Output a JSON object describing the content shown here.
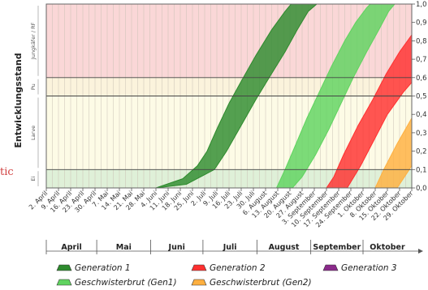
{
  "chart_data": {
    "type": "area",
    "ylabel": "Entwicklungsstand",
    "ylim": [
      0,
      1
    ],
    "y_ticks": [
      "0,0",
      "0,1",
      "0,2",
      "0,3",
      "0,4",
      "0,5",
      "0,6",
      "0,7",
      "0,8",
      "0,9",
      "1,0"
    ],
    "stage_bands": [
      {
        "label": "Ei",
        "from": 0.0,
        "to": 0.1,
        "color": "#dff0d8"
      },
      {
        "label": "Larve",
        "from": 0.1,
        "to": 0.5,
        "color": "#fdfbe6"
      },
      {
        "label": "Pu",
        "from": 0.5,
        "to": 0.6,
        "color": "#fbf3dc"
      },
      {
        "label": "Jungkäfer / RF",
        "from": 0.6,
        "to": 1.0,
        "color": "#fad7d7"
      }
    ],
    "x_dates": [
      "2. April",
      "9. April",
      "16. April",
      "23. April",
      "30. April",
      "7. Mai",
      "14. Mai",
      "21. Mai",
      "28. Mai",
      "4. Juni",
      "11. Juni",
      "18. Juni",
      "25. Juni",
      "2. Juli",
      "9. Juli",
      "16. Juli",
      "23. Juli",
      "30. Juli",
      "6. August",
      "13. August",
      "20. August",
      "27. August",
      "3. September",
      "10. September",
      "17. September",
      "24. September",
      "1. Oktober",
      "8. Oktober",
      "15. Oktober",
      "22. Oktober",
      "29. Oktober"
    ],
    "months": [
      {
        "label": "April",
        "start": 0,
        "end": 4.14
      },
      {
        "label": "Mai",
        "start": 4.14,
        "end": 8.57
      },
      {
        "label": "Juni",
        "start": 8.57,
        "end": 12.86
      },
      {
        "label": "Juli",
        "start": 12.86,
        "end": 17.29
      },
      {
        "label": "August",
        "start": 17.29,
        "end": 21.71
      },
      {
        "label": "September",
        "start": 21.71,
        "end": 26.0
      },
      {
        "label": "Oktober",
        "start": 26.0,
        "end": 30.43
      }
    ],
    "series": [
      {
        "name": "Generation 1",
        "color": "#2e8b2e",
        "upper": [
          [
            9,
            0
          ],
          [
            11.2,
            0.05
          ],
          [
            12.4,
            0.12
          ],
          [
            13.2,
            0.2
          ],
          [
            14.0,
            0.32
          ],
          [
            15.0,
            0.46
          ],
          [
            16.0,
            0.58
          ],
          [
            17.2,
            0.72
          ],
          [
            18.5,
            0.86
          ],
          [
            19.6,
            0.96
          ],
          [
            20.1,
            1.0
          ]
        ],
        "lower": [
          [
            9,
            0
          ],
          [
            11.5,
            0.02
          ],
          [
            13.8,
            0.1
          ],
          [
            14.8,
            0.2
          ],
          [
            16.0,
            0.34
          ],
          [
            17.2,
            0.48
          ],
          [
            18.3,
            0.6
          ],
          [
            19.6,
            0.74
          ],
          [
            20.6,
            0.86
          ],
          [
            21.5,
            0.96
          ],
          [
            22.2,
            1.0
          ]
        ]
      },
      {
        "name": "Geschwisterbrut (Gen1)",
        "color": "#5fd35f",
        "upper": [
          [
            18.9,
            0
          ],
          [
            19.6,
            0.1
          ],
          [
            20.5,
            0.24
          ],
          [
            21.4,
            0.38
          ],
          [
            22.4,
            0.52
          ],
          [
            23.4,
            0.66
          ],
          [
            24.5,
            0.8
          ],
          [
            25.4,
            0.9
          ],
          [
            26.3,
            0.98
          ],
          [
            26.6,
            1.0
          ]
        ],
        "lower": [
          [
            20.2,
            0
          ],
          [
            21.0,
            0.06
          ],
          [
            22.1,
            0.18
          ],
          [
            23.2,
            0.32
          ],
          [
            24.2,
            0.46
          ],
          [
            25.2,
            0.6
          ],
          [
            26.3,
            0.74
          ],
          [
            27.3,
            0.86
          ],
          [
            28.1,
            0.96
          ],
          [
            28.6,
            1.0
          ]
        ]
      },
      {
        "name": "Generation 2",
        "color": "#ff3030",
        "upper": [
          [
            23.0,
            0
          ],
          [
            23.6,
            0.06
          ],
          [
            24.4,
            0.18
          ],
          [
            25.6,
            0.34
          ],
          [
            26.8,
            0.48
          ],
          [
            27.9,
            0.62
          ],
          [
            29.0,
            0.74
          ],
          [
            30.3,
            0.86
          ],
          [
            31.6,
            0.95
          ],
          [
            32.4,
            1.0
          ]
        ],
        "lower": [
          [
            24.7,
            0
          ],
          [
            25.8,
            0.12
          ],
          [
            26.9,
            0.26
          ],
          [
            28.0,
            0.4
          ],
          [
            29.3,
            0.52
          ],
          [
            30.6,
            0.62
          ],
          [
            31.8,
            0.7
          ],
          [
            33.2,
            0.76
          ],
          [
            35.2,
            0.82
          ]
        ]
      },
      {
        "name": "Generation 3",
        "color": "#8b2a8b",
        "upper": [],
        "lower": []
      },
      {
        "name": "Geschwisterbrut (Gen2)",
        "color": "#ffb040",
        "upper": [
          [
            27.0,
            0
          ],
          [
            27.7,
            0.1
          ],
          [
            28.8,
            0.24
          ],
          [
            30.0,
            0.38
          ],
          [
            31.3,
            0.52
          ],
          [
            32.6,
            0.64
          ],
          [
            33.9,
            0.74
          ],
          [
            35.2,
            0.8
          ],
          [
            36.6,
            0.86
          ],
          [
            38.0,
            0.9
          ],
          [
            39.2,
            0.92
          ]
        ],
        "lower": [
          [
            28.8,
            0
          ],
          [
            29.8,
            0.1
          ],
          [
            30.9,
            0.22
          ],
          [
            32.2,
            0.36
          ],
          [
            33.5,
            0.5
          ],
          [
            34.8,
            0.62
          ],
          [
            36.2,
            0.72
          ],
          [
            37.6,
            0.78
          ],
          [
            39.2,
            0.8
          ]
        ]
      }
    ]
  },
  "stray_text": "tic"
}
